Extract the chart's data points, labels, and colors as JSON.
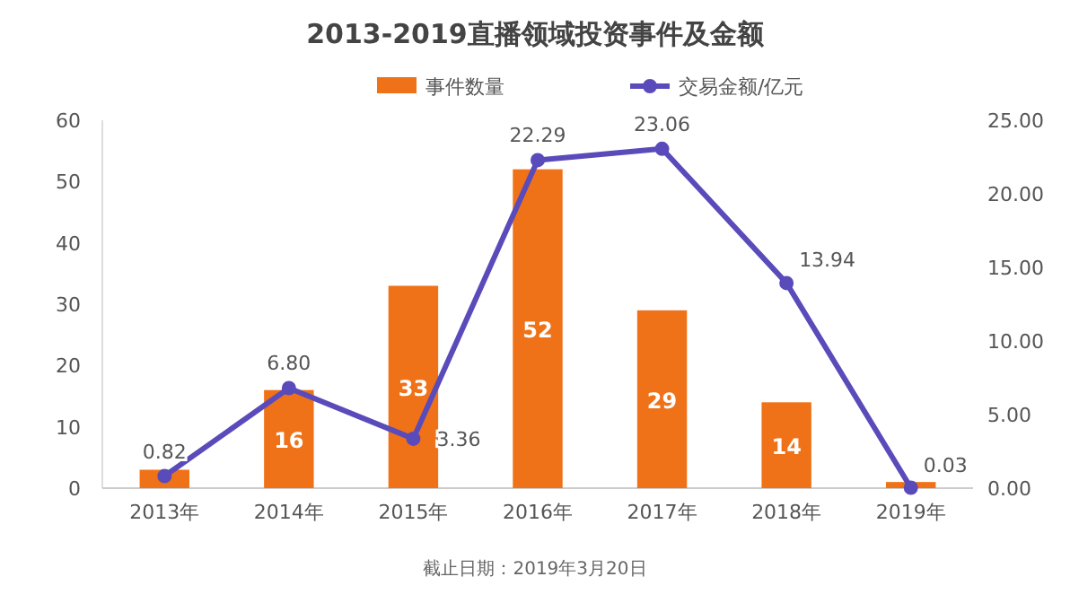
{
  "chart_data": {
    "type": "bar",
    "title": "2013-2019直播领域投资事件及金额",
    "categories": [
      "2013年",
      "2014年",
      "2015年",
      "2016年",
      "2017年",
      "2018年",
      "2019年"
    ],
    "series": [
      {
        "name": "事件数量",
        "type": "bar",
        "color": "#f07218",
        "values": [
          3,
          16,
          33,
          52,
          29,
          14,
          1
        ],
        "value_labels": [
          null,
          "16",
          "33",
          "52",
          "29",
          "14",
          null
        ]
      },
      {
        "name": "交易金额/亿元",
        "type": "line",
        "axis": "y2",
        "color": "#5a4bbb",
        "marker": "circle",
        "values": [
          0.82,
          6.8,
          3.36,
          22.29,
          23.06,
          13.94,
          0.03
        ],
        "value_labels": [
          "0.82",
          "6.80",
          "3.36",
          "22.29",
          "23.06",
          "13.94",
          "0.03"
        ]
      }
    ],
    "ylim": [
      0,
      60
    ],
    "yticks": [
      0,
      10,
      20,
      30,
      40,
      50,
      60
    ],
    "y2lim": [
      0,
      25
    ],
    "y2ticks": [
      {
        "value": 0,
        "label": "0.00"
      },
      {
        "value": 5,
        "label": "5.00"
      },
      {
        "value": 10,
        "label": "10.00"
      },
      {
        "value": 15,
        "label": "15.00"
      },
      {
        "value": 20,
        "label": "20.00"
      },
      {
        "value": 25,
        "label": "25.00"
      }
    ],
    "legend": "top",
    "grid": false,
    "annotations": [
      "截止日期：2019年3月20日"
    ]
  }
}
